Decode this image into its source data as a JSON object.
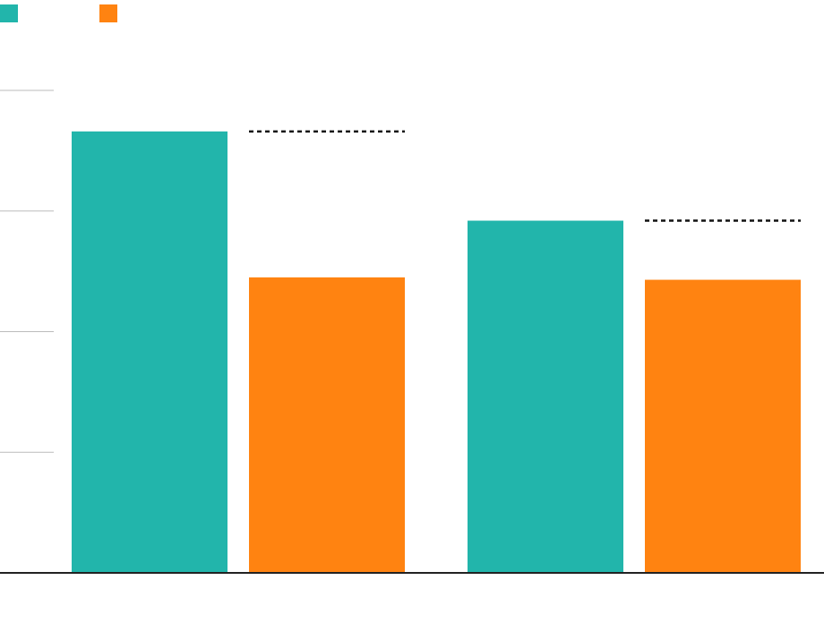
{
  "chart_data": {
    "type": "bar",
    "title": "",
    "xlabel": "",
    "ylabel": "",
    "ylim": [
      0,
      4
    ],
    "grid_values": [
      1,
      2,
      3,
      4
    ],
    "legend_position": "top-left",
    "groups": 2,
    "series": [
      {
        "values": [
          3.66,
          2.92
        ],
        "color": "#22B5AB"
      },
      {
        "values": [
          2.45,
          2.43
        ],
        "color": "#FF8311"
      }
    ],
    "reference_lines": [
      {
        "group": 0,
        "value": 3.66
      },
      {
        "group": 1,
        "value": 2.92
      }
    ]
  }
}
